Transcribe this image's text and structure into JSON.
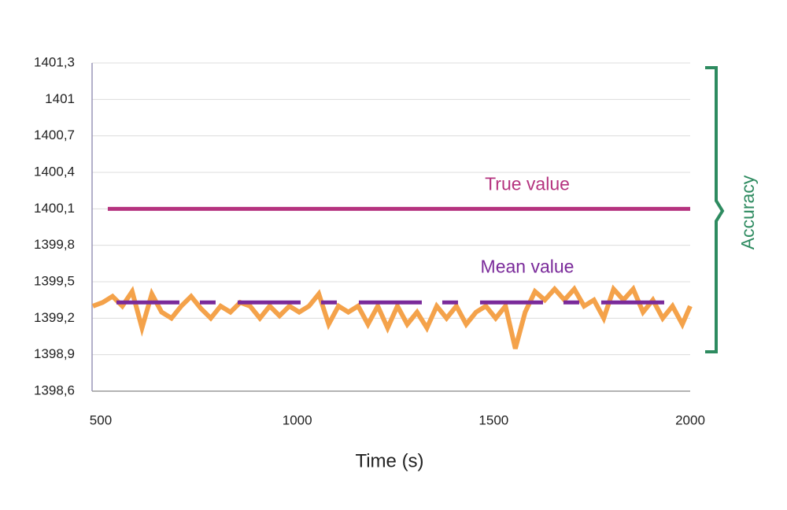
{
  "chart_data": {
    "type": "line",
    "x_label": "Time (s)",
    "annotations": {
      "accuracy": "Accuracy"
    },
    "xlim": [
      478,
      2000
    ],
    "xticks": [
      500,
      1000,
      1500,
      2000
    ],
    "ylim": [
      1398.6,
      1401.3
    ],
    "yticks": [
      {
        "value": 1398.6,
        "label": "1398,6"
      },
      {
        "value": 1398.9,
        "label": "1398,9"
      },
      {
        "value": 1399.2,
        "label": "1399,2"
      },
      {
        "value": 1399.5,
        "label": "1399,5"
      },
      {
        "value": 1399.8,
        "label": "1399,8"
      },
      {
        "value": 1400.1,
        "label": "1400,1"
      },
      {
        "value": 1400.4,
        "label": "1400,4"
      },
      {
        "value": 1400.7,
        "label": "1400,7"
      },
      1401,
      {
        "value": 1401.3,
        "label": "1401,3"
      }
    ],
    "grid": true,
    "accuracy_color": "#2e8b60",
    "series": [
      {
        "color": "#f4a24a",
        "x": [
          480,
          505,
          530,
          555,
          580,
          605,
          630,
          655,
          680,
          705,
          730,
          755,
          780,
          805,
          830,
          855,
          880,
          905,
          930,
          955,
          980,
          1005,
          1030,
          1055,
          1080,
          1105,
          1130,
          1155,
          1180,
          1205,
          1230,
          1255,
          1280,
          1305,
          1330,
          1355,
          1380,
          1405,
          1430,
          1455,
          1480,
          1505,
          1530,
          1555,
          1580,
          1605,
          1630,
          1655,
          1680,
          1705,
          1730,
          1755,
          1780,
          1805,
          1830,
          1855,
          1880,
          1905,
          1930,
          1955,
          1980,
          2000
        ],
        "values": [
          1399.3,
          1399.33,
          1399.38,
          1399.3,
          1399.42,
          1399.12,
          1399.4,
          1399.25,
          1399.2,
          1399.3,
          1399.38,
          1399.28,
          1399.2,
          1399.3,
          1399.25,
          1399.33,
          1399.3,
          1399.2,
          1399.3,
          1399.22,
          1399.3,
          1399.25,
          1399.3,
          1399.4,
          1399.15,
          1399.3,
          1399.25,
          1399.3,
          1399.15,
          1399.3,
          1399.12,
          1399.3,
          1399.15,
          1399.25,
          1399.12,
          1399.3,
          1399.2,
          1399.3,
          1399.15,
          1399.25,
          1399.3,
          1399.2,
          1399.3,
          1398.95,
          1399.25,
          1399.42,
          1399.35,
          1399.44,
          1399.35,
          1399.44,
          1399.3,
          1399.35,
          1399.2,
          1399.44,
          1399.35,
          1399.44,
          1399.25,
          1399.35,
          1399.2,
          1399.3,
          1399.15,
          1399.3
        ]
      },
      {
        "name": "Mean value",
        "color": "#7a2a9a",
        "dashed": true,
        "x": [
          540,
          1960
        ],
        "values": [
          1399.33,
          1399.33
        ]
      },
      {
        "name": "True value",
        "color": "#b5337f",
        "x": [
          518,
          2000
        ],
        "values": [
          1400.1,
          1400.1
        ]
      }
    ]
  }
}
